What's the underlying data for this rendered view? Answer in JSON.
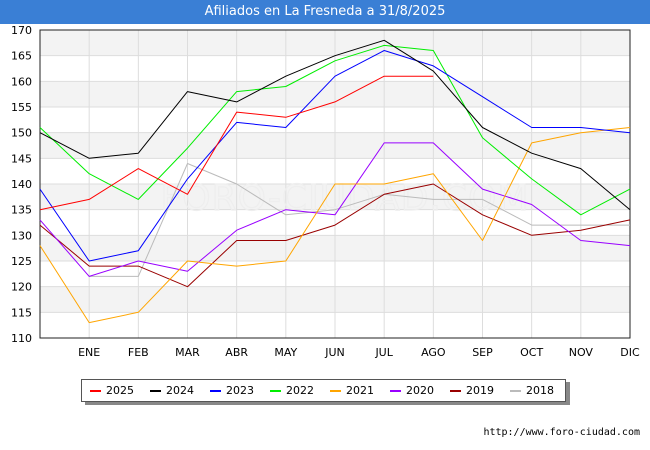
{
  "title": "Afiliados en La Fresneda a 31/8/2025",
  "source": "http://www.foro-ciudad.com",
  "watermark": "FORO-CIUDAD.COM",
  "chart_data": {
    "type": "line",
    "categories": [
      "",
      "ENE",
      "FEB",
      "MAR",
      "ABR",
      "MAY",
      "JUN",
      "JUL",
      "AGO",
      "SEP",
      "OCT",
      "NOV",
      "DIC"
    ],
    "ylim": [
      110,
      170
    ],
    "yticks": [
      110,
      115,
      120,
      125,
      130,
      135,
      140,
      145,
      150,
      155,
      160,
      165,
      170
    ],
    "grid": true,
    "legend_position": "bottom",
    "series": [
      {
        "name": "2025",
        "color": "#ff0000",
        "values": [
          135,
          137,
          143,
          138,
          154,
          153,
          156,
          161,
          161,
          null,
          null,
          null,
          null
        ]
      },
      {
        "name": "2024",
        "color": "#000000",
        "values": [
          150,
          145,
          146,
          158,
          156,
          161,
          165,
          168,
          162,
          151,
          146,
          143,
          135
        ]
      },
      {
        "name": "2023",
        "color": "#0000ff",
        "values": [
          139,
          125,
          127,
          141,
          152,
          151,
          161,
          166,
          163,
          157,
          151,
          151,
          150
        ]
      },
      {
        "name": "2022",
        "color": "#00ee00",
        "values": [
          151,
          142,
          137,
          147,
          158,
          159,
          164,
          167,
          166,
          149,
          141,
          134,
          139
        ]
      },
      {
        "name": "2021",
        "color": "#ffa500",
        "values": [
          128,
          113,
          115,
          125,
          124,
          125,
          140,
          140,
          142,
          129,
          148,
          150,
          151
        ]
      },
      {
        "name": "2020",
        "color": "#9900ff",
        "values": [
          133,
          122,
          125,
          123,
          131,
          135,
          134,
          148,
          148,
          139,
          136,
          129,
          128
        ]
      },
      {
        "name": "2019",
        "color": "#990000",
        "values": [
          132,
          124,
          124,
          120,
          129,
          129,
          132,
          138,
          140,
          134,
          130,
          131,
          133
        ]
      },
      {
        "name": "2018",
        "color": "#bbbbbb",
        "values": [
          null,
          122,
          122,
          144,
          140,
          134,
          135,
          138,
          137,
          137,
          132,
          132,
          132
        ]
      }
    ]
  }
}
